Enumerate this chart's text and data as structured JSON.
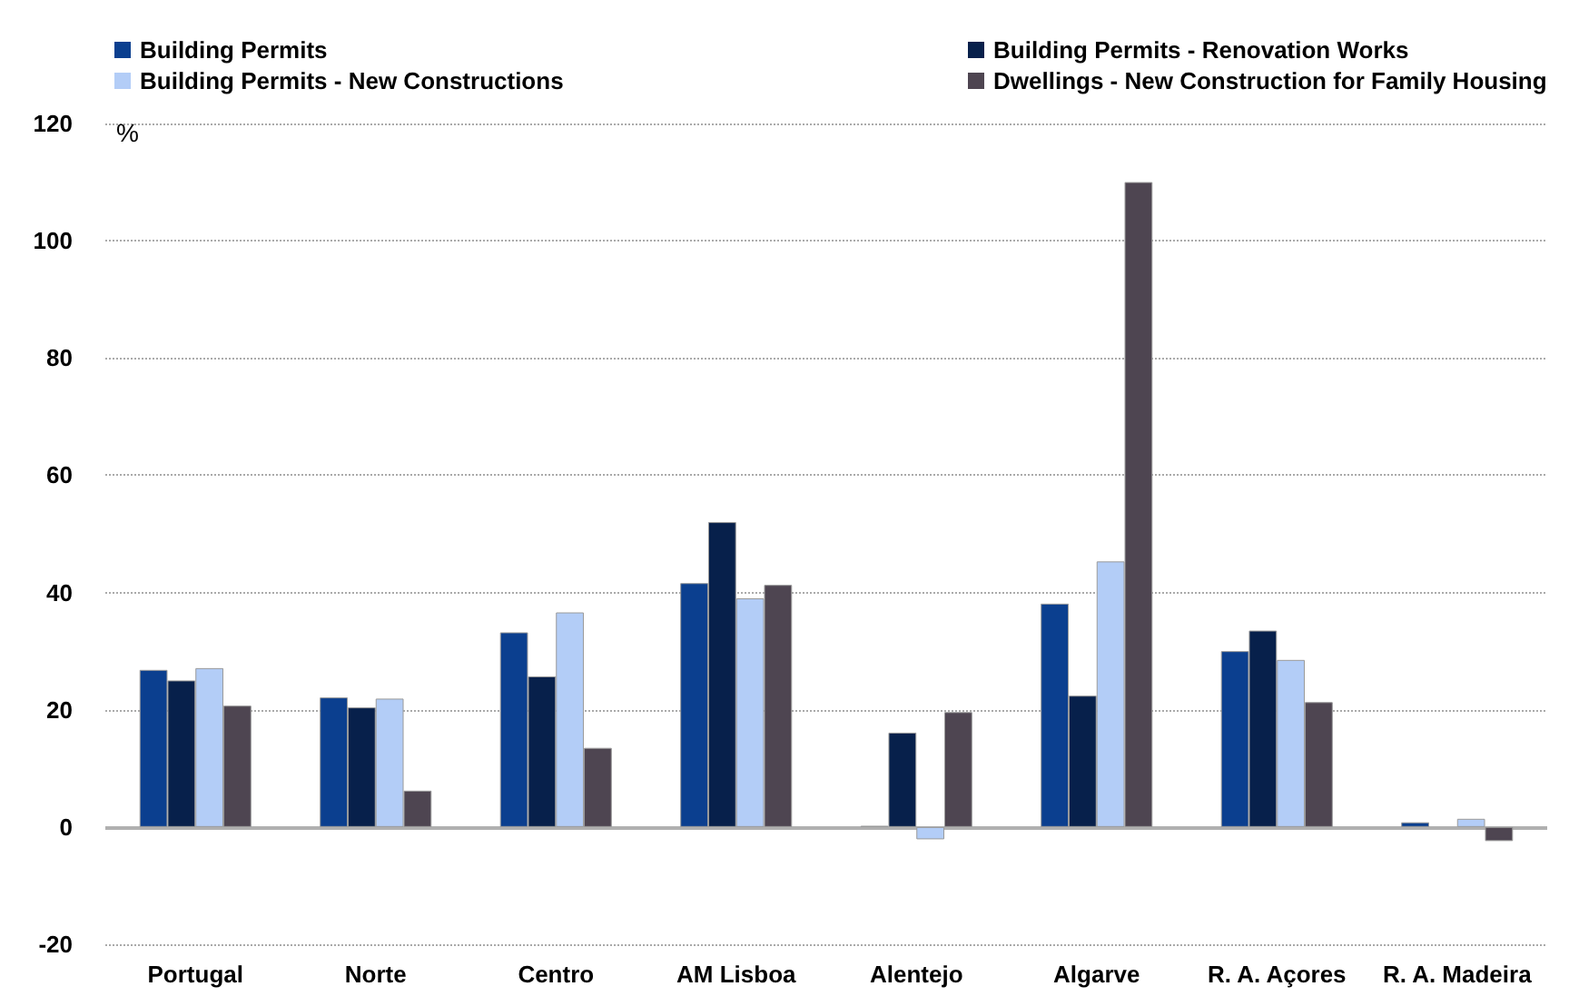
{
  "chart_data": {
    "type": "bar",
    "ylabel": "%",
    "categories": [
      "Portugal",
      "Norte",
      "Centro",
      "AM Lisboa",
      "Alentejo",
      "Algarve",
      "R. A. Açores",
      "R. A. Madeira"
    ],
    "series": [
      {
        "name": "Building Permits",
        "color": "#0b3f8f",
        "values": [
          26.8,
          22.1,
          33.2,
          41.6,
          0.2,
          38.1,
          30.0,
          0.8
        ]
      },
      {
        "name": "Building Permits - Renovation Works",
        "color": "#07204b",
        "values": [
          25.0,
          20.4,
          25.7,
          52.0,
          16.1,
          22.4,
          33.5,
          null
        ]
      },
      {
        "name": "Building Permits - New Constructions",
        "color": "#b3cdf7",
        "values": [
          27.1,
          21.9,
          36.6,
          39.0,
          -2.1,
          45.3,
          28.5,
          1.4
        ]
      },
      {
        "name": "Dwellings - New Construction for Family Housing",
        "color": "#4e4551",
        "values": [
          20.7,
          6.2,
          13.5,
          41.3,
          19.6,
          110,
          21.3,
          -2.4
        ]
      }
    ],
    "ylim": [
      -20,
      120
    ],
    "yticks": [
      -20,
      0,
      20,
      40,
      60,
      80,
      100,
      120
    ],
    "grid": "y",
    "legend": "top"
  }
}
